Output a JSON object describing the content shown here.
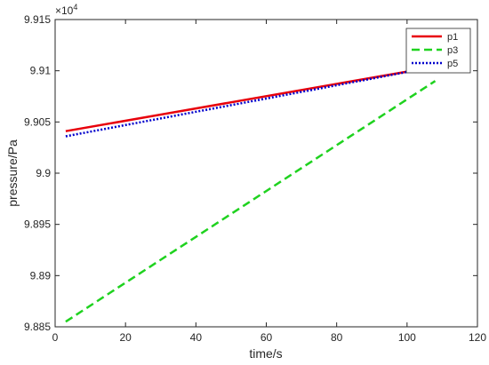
{
  "chart_data": {
    "type": "line",
    "xlabel": "time/s",
    "ylabel": "pressure/Pa",
    "exponent_label": "×10",
    "exponent_power": "4",
    "xlim": [
      0,
      120
    ],
    "ylim": [
      9.885,
      9.915
    ],
    "x_ticks": [
      0,
      20,
      40,
      60,
      80,
      100,
      120
    ],
    "x_tick_labels": [
      "0",
      "20",
      "40",
      "60",
      "80",
      "100",
      "120"
    ],
    "y_ticks": [
      9.885,
      9.89,
      9.895,
      9.9,
      9.905,
      9.91,
      9.915
    ],
    "y_tick_labels": [
      "9.885",
      "9.89",
      "9.895",
      "9.9",
      "9.905",
      "9.91",
      "9.915"
    ],
    "grid": false,
    "legend_position": "top-right",
    "series": [
      {
        "name": "p1",
        "color": "#e8000b",
        "style": "solid",
        "x": [
          3,
          108
        ],
        "y": [
          9.9041,
          9.9104
        ]
      },
      {
        "name": "p3",
        "color": "#1fd21f",
        "style": "dashed",
        "x": [
          3,
          108
        ],
        "y": [
          9.8855,
          9.909
        ]
      },
      {
        "name": "p5",
        "color": "#0000cc",
        "style": "dotted",
        "x": [
          3,
          108
        ],
        "y": [
          9.9036,
          9.9104
        ]
      }
    ]
  }
}
